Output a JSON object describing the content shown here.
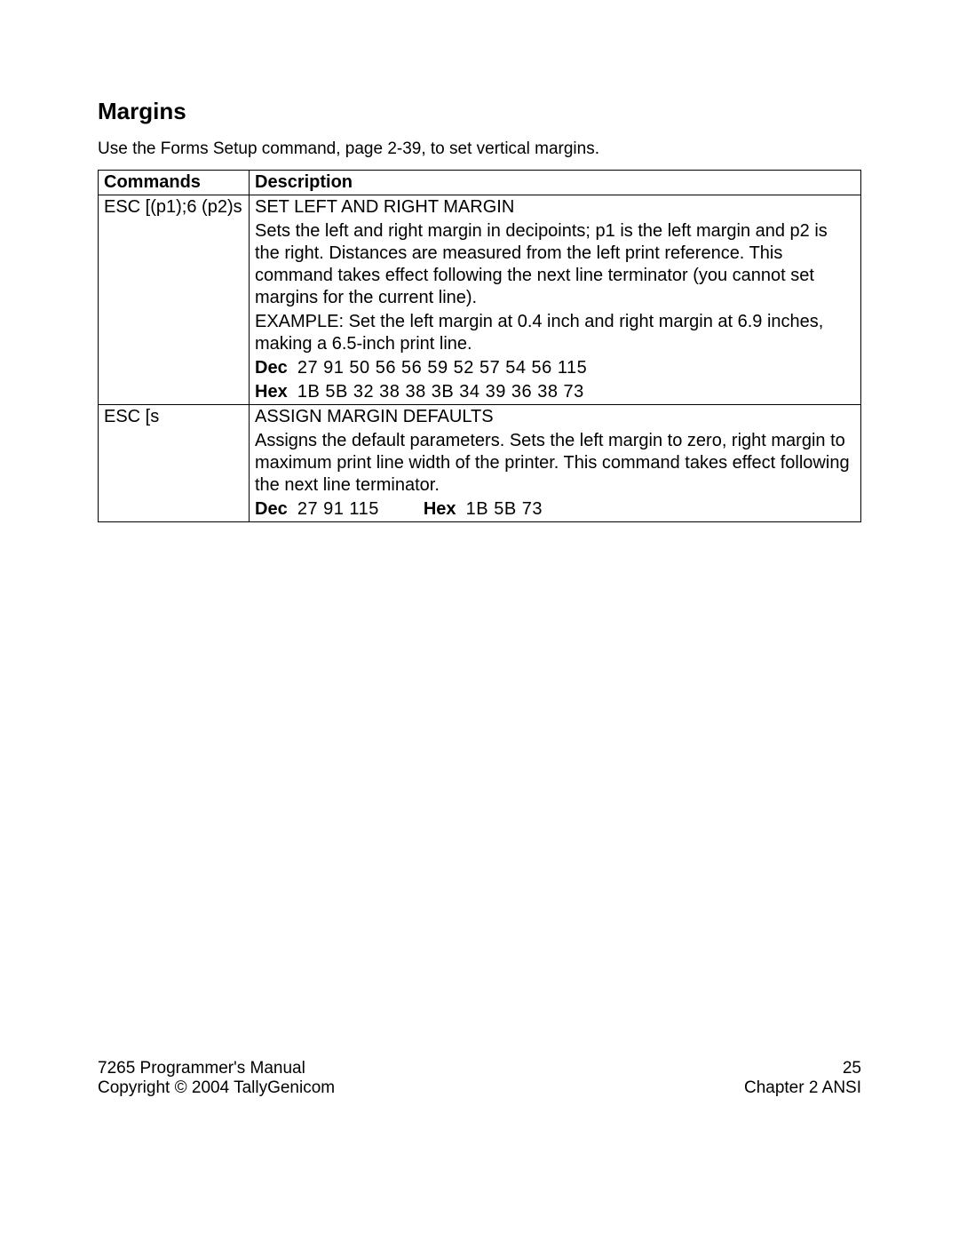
{
  "section_title": "Margins",
  "intro_text": "Use the Forms Setup command, page 2-39, to set vertical margins.",
  "table": {
    "col1_header": "Commands",
    "col2_header": "Description",
    "row1": {
      "command": "ESC [(p1);6 (p2)s",
      "title": "SET LEFT AND RIGHT MARGIN",
      "desc": "Sets the left and right margin in decipoints; p1 is the left margin and p2 is the right. Distances are measured from the left print reference. This command takes effect following the next line terminator (you cannot set margins for the current line).",
      "example": "EXAMPLE: Set the left margin at 0.4 inch and right margin at 6.9 inches, making a 6.5-inch print line.",
      "dec_label": "Dec",
      "dec_values": "27  91  50  56  56  59  52  57  54  56  115",
      "hex_label": "Hex",
      "hex_values": "1B  5B  32  38  38  3B  34  39  36  38  73"
    },
    "row2": {
      "command": "ESC [s",
      "title": "ASSIGN MARGIN DEFAULTS",
      "desc": "Assigns the default parameters. Sets the left margin to zero, right margin to maximum print line width of the printer. This command takes effect following the next line terminator.",
      "dec_label": "Dec",
      "dec_values": "27  91  115",
      "hex_label": "Hex",
      "hex_values": "1B  5B  73"
    }
  },
  "footer": {
    "manual": "7265 Programmer's Manual",
    "copyright": "Copyright © 2004 TallyGenicom",
    "page_number": "25",
    "chapter": "Chapter 2 ANSI"
  }
}
